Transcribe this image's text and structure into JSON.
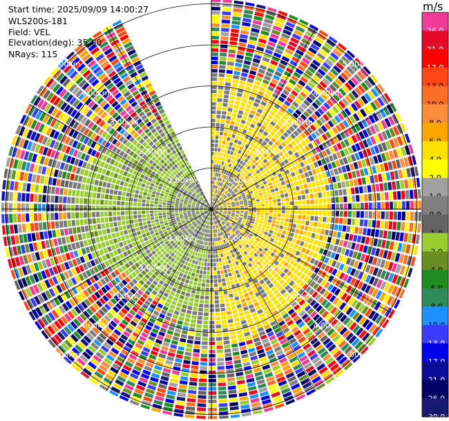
{
  "header": {
    "start_time": "Start time: 2025/09/09 14:00:27",
    "station": "WLS200s-181",
    "field": "Field: VEL",
    "elevation": "Elevation(deg): 35.00",
    "nrays": "NRays: 115"
  },
  "range_rings": [
    "1.00km",
    "2.00km",
    "3.00km",
    "4.00km",
    "5.00km"
  ],
  "colorbar": {
    "unit": "m/s",
    "levels": [
      {
        "label": "26.0",
        "color": "#f03c96"
      },
      {
        "label": "21.0",
        "color": "#e60a28"
      },
      {
        "label": "17.0",
        "color": "#ff0000"
      },
      {
        "label": "13.0",
        "color": "#ff4614"
      },
      {
        "label": "10.0",
        "color": "#ff6e28"
      },
      {
        "label": "8.0",
        "color": "#ff8c3c"
      },
      {
        "label": "6.0",
        "color": "#ffa500"
      },
      {
        "label": "4.0",
        "color": "#ffe100"
      },
      {
        "label": "2.0",
        "color": "#ffff00"
      },
      {
        "label": "1.0",
        "color": "#a0a0a0"
      },
      {
        "label": "0.0",
        "color": "#808080"
      },
      {
        "label": "-1.0",
        "color": "#646464"
      },
      {
        "label": "-2.0",
        "color": "#9acd32"
      },
      {
        "label": "-4.0",
        "color": "#6b8e23"
      },
      {
        "label": "-6.0",
        "color": "#228b22"
      },
      {
        "label": "-8.0",
        "color": "#2e8b57"
      },
      {
        "label": "-10.0",
        "color": "#1e90ff"
      },
      {
        "label": "-13.0",
        "color": "#3c3cff"
      },
      {
        "label": "-17.0",
        "color": "#0000e6"
      },
      {
        "label": "-21.0",
        "color": "#0a0a96"
      },
      {
        "label": "-26.0",
        "color": "#000064"
      },
      {
        "label": "-30.0",
        "color": "#191970"
      }
    ]
  },
  "colors": {
    "approaching": "#9acd32",
    "receding": "#ffe100",
    "near_zero": "#7a7a7a",
    "ring_lines": "#000000",
    "gate_separator": "#ffffff"
  }
}
